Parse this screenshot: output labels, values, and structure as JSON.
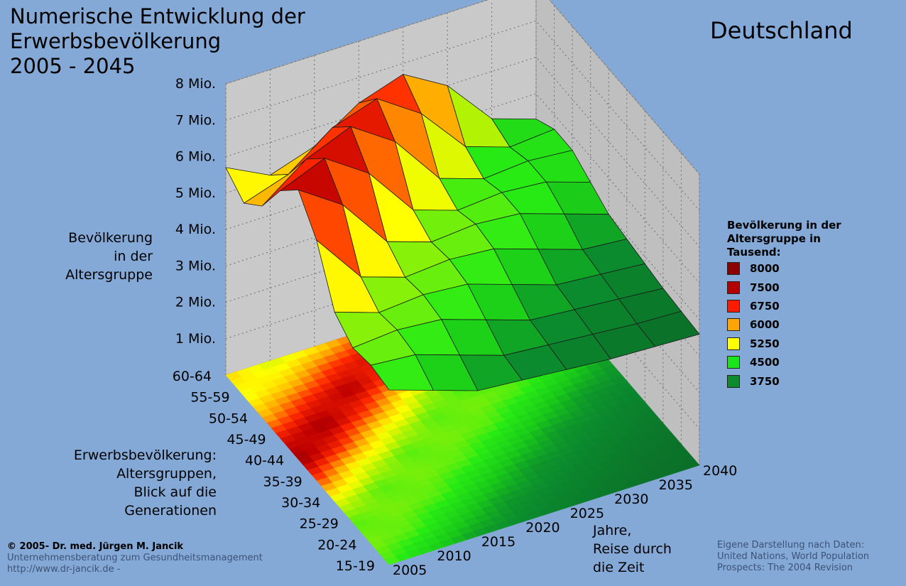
{
  "title_lines": [
    "Numerische Entwicklung der",
    "Erwerbsbevölkerung",
    "2005 - 2045"
  ],
  "country": "Deutschland",
  "z_axis_label_lines": [
    "Bevölkerung",
    "in der",
    "Altersgruppe"
  ],
  "y_axis_label_lines": [
    "Erwerbsbevölkerung:",
    "Altersgruppen,",
    "Blick auf die",
    "Generationen"
  ],
  "x_axis_label_lines": [
    "Jahre,",
    "Reise durch",
    "die Zeit"
  ],
  "legend": {
    "title_lines": [
      "Bevölkerung in der",
      "Altersgruppe in",
      "Tausend:"
    ],
    "items": [
      {
        "label": "8000",
        "color": "#8b0000"
      },
      {
        "label": "7500",
        "color": "#b50000"
      },
      {
        "label": "6750",
        "color": "#ff1a00"
      },
      {
        "label": "6000",
        "color": "#ffa500"
      },
      {
        "label": "5250",
        "color": "#ffff00"
      },
      {
        "label": "4500",
        "color": "#19e619"
      },
      {
        "label": "3750",
        "color": "#0b8a2e"
      }
    ]
  },
  "credit_lines": [
    "© 2005-  Dr. med. Jürgen M. Jancik",
    "Unternehmensberatung zum Gesundheitsmanagement",
    "http://www.dr-jancik.de -"
  ],
  "source_lines": [
    "Eigene Darstellung nach Daten:",
    "United Nations, World Population",
    "Prospects: The 2004 Revision"
  ],
  "chart_data": {
    "type": "surface3d",
    "x_label": "Jahre",
    "y_label": "Altersgruppen",
    "z_label": "Bevölkerung in der Altersgruppe",
    "x": [
      "2005",
      "2010",
      "2015",
      "2020",
      "2025",
      "2030",
      "2035",
      "2040"
    ],
    "y": [
      "15-19",
      "20-24",
      "25-29",
      "30-34",
      "35-39",
      "40-44",
      "45-49",
      "50-54",
      "55-59",
      "60-64"
    ],
    "z_ticks": [
      "1 Mio.",
      "2 Mio.",
      "3 Mio.",
      "4 Mio.",
      "5 Mio.",
      "6 Mio.",
      "7 Mio.",
      "8 Mio."
    ],
    "z_range": [
      0,
      8000
    ],
    "z_unit": "Tausend",
    "z_values_by_age": [
      [
        4800,
        4400,
        4000,
        3900,
        3800,
        3700,
        3650,
        3600
      ],
      [
        4900,
        4800,
        4400,
        4000,
        3900,
        3800,
        3700,
        3650
      ],
      [
        4800,
        4900,
        4800,
        4400,
        4000,
        3900,
        3800,
        3700
      ],
      [
        5200,
        4800,
        4900,
        4800,
        4400,
        4000,
        3900,
        3800
      ],
      [
        6600,
        5200,
        4800,
        4900,
        4800,
        4400,
        4000,
        3900
      ],
      [
        7400,
        6600,
        5200,
        4800,
        4900,
        4800,
        4400,
        4000
      ],
      [
        6800,
        7300,
        6500,
        5100,
        4700,
        4800,
        4700,
        4300
      ],
      [
        5800,
        6700,
        7200,
        6400,
        5000,
        4600,
        4700,
        4600
      ],
      [
        5300,
        5700,
        6600,
        7000,
        6200,
        4900,
        4500,
        4600
      ],
      [
        5700,
        5100,
        5500,
        6300,
        6700,
        6000,
        4700,
        4300
      ]
    ]
  }
}
